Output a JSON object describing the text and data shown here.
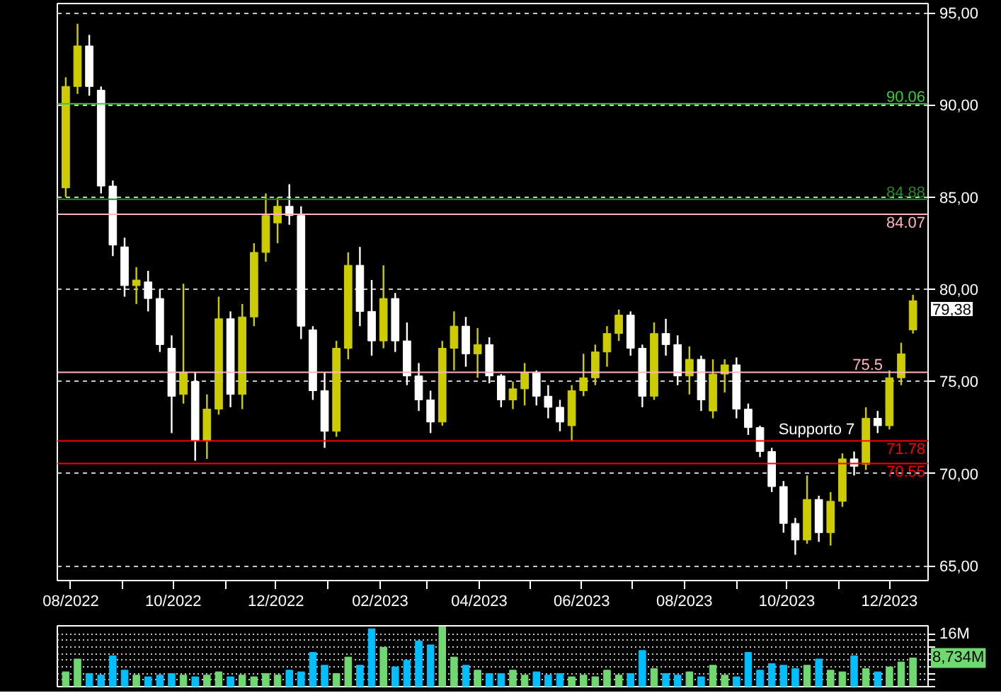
{
  "chart_data": [
    {
      "type": "candlestick",
      "x": [
        "2022-07-29",
        "2022-08-05",
        "2022-08-12",
        "2022-08-19",
        "2022-08-26",
        "2022-09-02",
        "2022-09-09",
        "2022-09-16",
        "2022-09-23",
        "2022-09-30",
        "2022-10-07",
        "2022-10-14",
        "2022-10-21",
        "2022-10-28",
        "2022-11-04",
        "2022-11-11",
        "2022-11-18",
        "2022-11-25",
        "2022-12-02",
        "2022-12-09",
        "2022-12-16",
        "2022-12-23",
        "2022-12-30",
        "2023-01-06",
        "2023-01-13",
        "2023-01-20",
        "2023-01-27",
        "2023-02-03",
        "2023-02-10",
        "2023-02-17",
        "2023-02-24",
        "2023-03-03",
        "2023-03-10",
        "2023-03-17",
        "2023-03-24",
        "2023-03-31",
        "2023-04-07",
        "2023-04-14",
        "2023-04-21",
        "2023-04-28",
        "2023-05-05",
        "2023-05-12",
        "2023-05-19",
        "2023-05-26",
        "2023-06-02",
        "2023-06-09",
        "2023-06-16",
        "2023-06-23",
        "2023-06-30",
        "2023-07-07",
        "2023-07-14",
        "2023-07-21",
        "2023-07-28",
        "2023-08-04",
        "2023-08-11",
        "2023-08-18",
        "2023-08-25",
        "2023-09-01",
        "2023-09-08",
        "2023-09-15",
        "2023-09-22",
        "2023-09-29",
        "2023-10-06",
        "2023-10-13",
        "2023-10-20",
        "2023-10-27",
        "2023-11-03",
        "2023-11-10",
        "2023-11-17",
        "2023-11-24",
        "2023-12-01",
        "2023-12-08",
        "2023-12-15"
      ],
      "ohlc": [
        [
          85.5,
          91.5,
          85.0,
          91.0
        ],
        [
          91.0,
          94.4,
          90.6,
          93.2
        ],
        [
          93.2,
          93.8,
          90.5,
          91.0
        ],
        [
          90.8,
          91.0,
          85.2,
          85.6
        ],
        [
          85.6,
          85.9,
          81.8,
          82.4
        ],
        [
          82.3,
          82.8,
          79.6,
          80.2
        ],
        [
          80.2,
          81.2,
          79.2,
          80.5
        ],
        [
          80.4,
          81.0,
          78.8,
          79.5
        ],
        [
          79.5,
          80.0,
          76.6,
          77.0
        ],
        [
          76.8,
          77.5,
          72.2,
          74.2
        ],
        [
          74.3,
          80.3,
          73.8,
          75.5
        ],
        [
          75.0,
          75.5,
          70.7,
          71.8
        ],
        [
          71.8,
          74.3,
          70.8,
          73.5
        ],
        [
          73.5,
          79.6,
          73.2,
          78.4
        ],
        [
          78.4,
          78.8,
          73.6,
          74.3
        ],
        [
          74.3,
          79.2,
          73.5,
          78.5
        ],
        [
          78.5,
          82.5,
          78.0,
          82.0
        ],
        [
          82.0,
          85.2,
          81.5,
          84.0
        ],
        [
          83.6,
          85.0,
          82.5,
          84.5
        ],
        [
          84.5,
          85.7,
          83.5,
          84.0
        ],
        [
          84.0,
          84.5,
          77.3,
          78.0
        ],
        [
          77.8,
          78.0,
          74.0,
          74.5
        ],
        [
          74.5,
          75.5,
          71.4,
          72.3
        ],
        [
          72.3,
          77.2,
          72.0,
          76.8
        ],
        [
          76.8,
          82.0,
          76.2,
          81.3
        ],
        [
          81.3,
          82.3,
          78.0,
          78.8
        ],
        [
          78.8,
          80.5,
          76.4,
          77.2
        ],
        [
          77.2,
          81.3,
          76.8,
          79.5
        ],
        [
          79.5,
          79.8,
          76.6,
          77.2
        ],
        [
          77.2,
          78.2,
          74.8,
          75.3
        ],
        [
          75.3,
          76.0,
          73.4,
          74.0
        ],
        [
          74.0,
          74.5,
          72.2,
          72.8
        ],
        [
          72.8,
          77.2,
          72.6,
          76.8
        ],
        [
          76.8,
          78.8,
          75.6,
          78.0
        ],
        [
          78.0,
          78.5,
          75.8,
          76.5
        ],
        [
          76.5,
          77.9,
          75.2,
          77.0
        ],
        [
          77.0,
          77.4,
          74.9,
          75.3
        ],
        [
          75.3,
          75.4,
          73.6,
          74.0
        ],
        [
          74.0,
          75.0,
          73.5,
          74.6
        ],
        [
          74.6,
          76.0,
          73.7,
          75.5
        ],
        [
          75.5,
          75.6,
          73.7,
          74.2
        ],
        [
          74.2,
          74.8,
          73.0,
          73.6
        ],
        [
          73.6,
          74.0,
          72.3,
          72.8
        ],
        [
          72.6,
          74.8,
          71.8,
          74.5
        ],
        [
          74.5,
          76.5,
          74.2,
          75.2
        ],
        [
          75.2,
          77.0,
          74.8,
          76.6
        ],
        [
          76.6,
          78.0,
          75.8,
          77.6
        ],
        [
          77.6,
          78.9,
          77.2,
          78.6
        ],
        [
          78.6,
          78.8,
          76.4,
          76.8
        ],
        [
          76.8,
          77.0,
          73.6,
          74.2
        ],
        [
          74.2,
          78.2,
          74.0,
          77.6
        ],
        [
          77.6,
          78.4,
          76.4,
          77.0
        ],
        [
          77.0,
          77.5,
          74.8,
          75.3
        ],
        [
          75.3,
          76.9,
          74.3,
          76.2
        ],
        [
          76.2,
          76.4,
          73.4,
          74.0
        ],
        [
          73.4,
          76.2,
          73.0,
          75.4
        ],
        [
          75.4,
          76.2,
          74.4,
          75.9
        ],
        [
          75.9,
          76.3,
          73.0,
          73.5
        ],
        [
          73.5,
          73.8,
          72.1,
          72.5
        ],
        [
          72.5,
          72.6,
          70.9,
          71.2
        ],
        [
          71.2,
          71.4,
          69.0,
          69.3
        ],
        [
          69.3,
          69.6,
          66.8,
          67.3
        ],
        [
          67.3,
          67.6,
          65.6,
          66.4
        ],
        [
          66.4,
          69.9,
          66.2,
          68.6
        ],
        [
          68.6,
          68.8,
          66.3,
          66.8
        ],
        [
          66.8,
          69.0,
          66.1,
          68.5
        ],
        [
          68.5,
          71.1,
          68.2,
          70.8
        ],
        [
          70.8,
          71.2,
          69.9,
          70.4
        ],
        [
          70.5,
          73.6,
          70.2,
          73.0
        ],
        [
          73.0,
          73.4,
          72.2,
          72.6
        ],
        [
          72.6,
          75.6,
          72.4,
          75.2
        ],
        [
          75.2,
          77.1,
          74.8,
          76.5
        ],
        [
          77.8,
          79.7,
          77.6,
          79.38
        ]
      ],
      "colors": [
        "#cccc00",
        "#cccc00",
        "#ffffff",
        "#ffffff",
        "#ffffff",
        "#ffffff",
        "#cccc00",
        "#ffffff",
        "#ffffff",
        "#ffffff",
        "#cccc00",
        "#ffffff",
        "#cccc00",
        "#cccc00",
        "#ffffff",
        "#cccc00",
        "#cccc00",
        "#cccc00",
        "#cccc00",
        "#ffffff",
        "#ffffff",
        "#ffffff",
        "#ffffff",
        "#cccc00",
        "#cccc00",
        "#ffffff",
        "#ffffff",
        "#cccc00",
        "#ffffff",
        "#ffffff",
        "#ffffff",
        "#ffffff",
        "#cccc00",
        "#cccc00",
        "#ffffff",
        "#cccc00",
        "#ffffff",
        "#ffffff",
        "#cccc00",
        "#cccc00",
        "#ffffff",
        "#ffffff",
        "#ffffff",
        "#cccc00",
        "#cccc00",
        "#cccc00",
        "#cccc00",
        "#cccc00",
        "#ffffff",
        "#ffffff",
        "#cccc00",
        "#ffffff",
        "#ffffff",
        "#cccc00",
        "#ffffff",
        "#cccc00",
        "#cccc00",
        "#ffffff",
        "#ffffff",
        "#ffffff",
        "#ffffff",
        "#ffffff",
        "#ffffff",
        "#cccc00",
        "#ffffff",
        "#cccc00",
        "#cccc00",
        "#ffffff",
        "#cccc00",
        "#ffffff",
        "#cccc00",
        "#cccc00",
        "#cccc00"
      ],
      "xlim": [
        "2022-07-24",
        "2023-12-24"
      ],
      "xticks": [
        {
          "value": "2022-08",
          "label": "08/2022"
        },
        {
          "value": "2022-09",
          "label": null
        },
        {
          "value": "2022-10",
          "label": "10/2022"
        },
        {
          "value": "2022-11",
          "label": null
        },
        {
          "value": "2022-12",
          "label": "12/2022"
        },
        {
          "value": "2023-01",
          "label": null
        },
        {
          "value": "2023-02",
          "label": "02/2023"
        },
        {
          "value": "2023-03",
          "label": null
        },
        {
          "value": "2023-04",
          "label": "04/2023"
        },
        {
          "value": "2023-05",
          "label": null
        },
        {
          "value": "2023-06",
          "label": "06/2023"
        },
        {
          "value": "2023-07",
          "label": null
        },
        {
          "value": "2023-08",
          "label": "08/2023"
        },
        {
          "value": "2023-09",
          "label": null
        },
        {
          "value": "2023-10",
          "label": "10/2023"
        },
        {
          "value": "2023-11",
          "label": null
        },
        {
          "value": "2023-12",
          "label": "12/2023"
        }
      ],
      "ylim": [
        64.2,
        95.5
      ],
      "yticks": [
        {
          "value": 65,
          "label": "65,00"
        },
        {
          "value": 70,
          "label": "70,00"
        },
        {
          "value": 75,
          "label": "75,00"
        },
        {
          "value": 80,
          "label": "80,00"
        },
        {
          "value": 85,
          "label": "85,00"
        },
        {
          "value": 90,
          "label": "90,00"
        },
        {
          "value": 95,
          "label": "95,00"
        }
      ],
      "grid": "y",
      "ref_lines": [
        {
          "axis": "y",
          "value": 90.06,
          "label": "90.06",
          "color": "#33cc33"
        },
        {
          "axis": "y",
          "value": 84.88,
          "label": "84.88",
          "color": "#228b22"
        },
        {
          "axis": "y",
          "value": 84.07,
          "label": "84.07",
          "color": "#ffb6c1"
        },
        {
          "axis": "y",
          "value": 75.5,
          "label": "75.5",
          "color": "#ffb6c1"
        },
        {
          "axis": "y",
          "value": 71.78,
          "label": "71.78",
          "color": "#ff0000"
        },
        {
          "axis": "y",
          "value": 70.55,
          "label": "70.55",
          "color": "#ff0000"
        }
      ],
      "annotations": [
        {
          "text": "Supporto 7",
          "x": "2023-09-26",
          "y": 71.78
        },
        "79,38"
      ]
    },
    {
      "type": "bar",
      "x": [
        "2022-07-29",
        "2022-08-05",
        "2022-08-12",
        "2022-08-19",
        "2022-08-26",
        "2022-09-02",
        "2022-09-09",
        "2022-09-16",
        "2022-09-23",
        "2022-09-30",
        "2022-10-07",
        "2022-10-14",
        "2022-10-21",
        "2022-10-28",
        "2022-11-04",
        "2022-11-11",
        "2022-11-18",
        "2022-11-25",
        "2022-12-02",
        "2022-12-09",
        "2022-12-16",
        "2022-12-23",
        "2022-12-30",
        "2023-01-06",
        "2023-01-13",
        "2023-01-20",
        "2023-01-27",
        "2023-02-03",
        "2023-02-10",
        "2023-02-17",
        "2023-02-24",
        "2023-03-03",
        "2023-03-10",
        "2023-03-17",
        "2023-03-24",
        "2023-03-31",
        "2023-04-07",
        "2023-04-14",
        "2023-04-21",
        "2023-04-28",
        "2023-05-05",
        "2023-05-12",
        "2023-05-19",
        "2023-05-26",
        "2023-06-02",
        "2023-06-09",
        "2023-06-16",
        "2023-06-23",
        "2023-06-30",
        "2023-07-07",
        "2023-07-14",
        "2023-07-21",
        "2023-07-28",
        "2023-08-04",
        "2023-08-11",
        "2023-08-18",
        "2023-08-25",
        "2023-09-01",
        "2023-09-08",
        "2023-09-15",
        "2023-09-22",
        "2023-09-29",
        "2023-10-06",
        "2023-10-13",
        "2023-10-20",
        "2023-10-27",
        "2023-11-03",
        "2023-11-10",
        "2023-11-17",
        "2023-11-24",
        "2023-12-01",
        "2023-12-08",
        "2023-12-15"
      ],
      "values": [
        4.5,
        8.4,
        4.0,
        3.5,
        9.4,
        5.0,
        3.5,
        3.0,
        3.5,
        4.0,
        3.5,
        3.0,
        3.5,
        4.5,
        3.0,
        3.5,
        3.0,
        4.0,
        3.5,
        5.0,
        4.5,
        10.4,
        6.5,
        4.0,
        9.0,
        6.5,
        17.6,
        12.0,
        6.0,
        8.0,
        13.9,
        12.7,
        18.2,
        9.0,
        6.5,
        5.0,
        4.0,
        4.0,
        5.0,
        3.5,
        4.5,
        3.5,
        4.0,
        3.0,
        3.5,
        3.0,
        5.0,
        3.5,
        4.0,
        11.0,
        5.5,
        4.0,
        3.5,
        4.5,
        3.0,
        6.5,
        3.5,
        3.0,
        10.4,
        5.0,
        7.0,
        6.5,
        5.5,
        6.5,
        8.4,
        5.0,
        4.5,
        9.4,
        5.5,
        4.5,
        6.0,
        7.5,
        8.734
      ],
      "colors": [
        "#70d870",
        "#70d870",
        "#00bfff",
        "#00bfff",
        "#00bfff",
        "#00bfff",
        "#70d870",
        "#00bfff",
        "#00bfff",
        "#00bfff",
        "#70d870",
        "#00bfff",
        "#70d870",
        "#70d870",
        "#00bfff",
        "#70d870",
        "#70d870",
        "#70d870",
        "#70d870",
        "#00bfff",
        "#00bfff",
        "#00bfff",
        "#00bfff",
        "#70d870",
        "#70d870",
        "#00bfff",
        "#00bfff",
        "#70d870",
        "#00bfff",
        "#00bfff",
        "#00bfff",
        "#00bfff",
        "#70d870",
        "#70d870",
        "#00bfff",
        "#70d870",
        "#00bfff",
        "#00bfff",
        "#70d870",
        "#70d870",
        "#00bfff",
        "#00bfff",
        "#00bfff",
        "#70d870",
        "#70d870",
        "#70d870",
        "#70d870",
        "#70d870",
        "#00bfff",
        "#00bfff",
        "#70d870",
        "#00bfff",
        "#00bfff",
        "#70d870",
        "#00bfff",
        "#70d870",
        "#70d870",
        "#00bfff",
        "#00bfff",
        "#00bfff",
        "#00bfff",
        "#00bfff",
        "#00bfff",
        "#70d870",
        "#00bfff",
        "#70d870",
        "#70d870",
        "#00bfff",
        "#70d870",
        "#00bfff",
        "#70d870",
        "#70d870",
        "#70d870"
      ],
      "xlim": [
        "2022-07-24",
        "2023-12-24"
      ],
      "ylim": [
        0,
        18.5
      ],
      "yticks": [
        {
          "value": 0,
          "label": null
        },
        {
          "value": 2,
          "label": null
        },
        {
          "value": 4,
          "label": null
        },
        {
          "value": 6,
          "label": null
        },
        {
          "value": 8,
          "label": null
        },
        {
          "value": 10,
          "label": null
        },
        {
          "value": 12,
          "label": null
        },
        {
          "value": 14,
          "label": null
        },
        {
          "value": 16,
          "label": "16M"
        }
      ],
      "grid": "y",
      "tick_labels": "y",
      "annotations": [
        "8,734M"
      ]
    }
  ]
}
